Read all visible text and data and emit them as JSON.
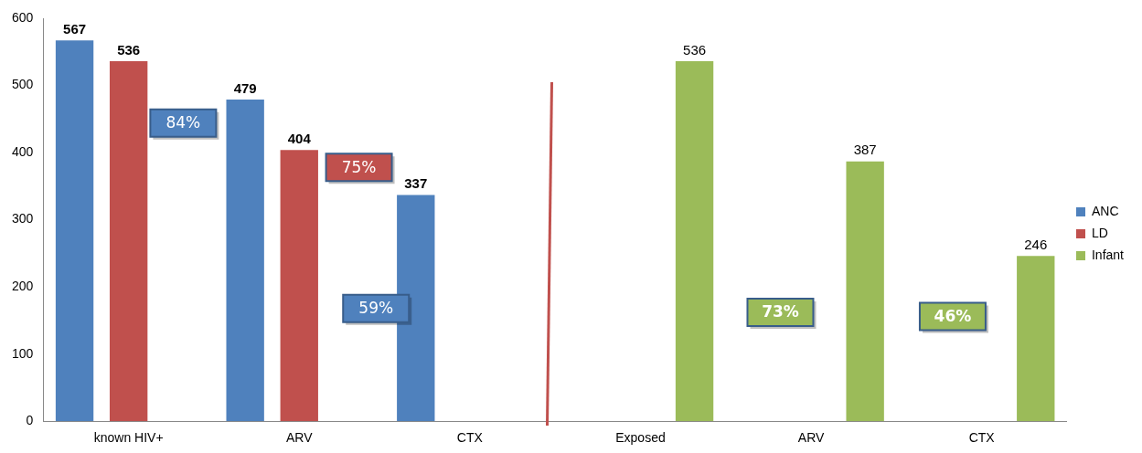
{
  "chart_data": {
    "type": "bar",
    "categories": [
      "known HIV+",
      "ARV",
      "CTX",
      "Exposed",
      "ARV",
      "CTX"
    ],
    "series": [
      {
        "name": "ANC",
        "color": "#4f81bd",
        "values": [
          567,
          479,
          337,
          null,
          null,
          null
        ]
      },
      {
        "name": "LD",
        "color": "#c0504d",
        "values": [
          536,
          404,
          null,
          null,
          null,
          null
        ]
      },
      {
        "name": "Infant",
        "color": "#9bbb59",
        "values": [
          null,
          null,
          null,
          536,
          387,
          246
        ]
      }
    ],
    "ylim": [
      0,
      600
    ],
    "yticks": [
      0,
      100,
      200,
      300,
      400,
      500,
      600
    ],
    "grid": false,
    "legend": "right",
    "data_labels": true,
    "annotations": [
      "84%",
      "75%",
      "59%",
      "73%",
      "46%"
    ]
  }
}
